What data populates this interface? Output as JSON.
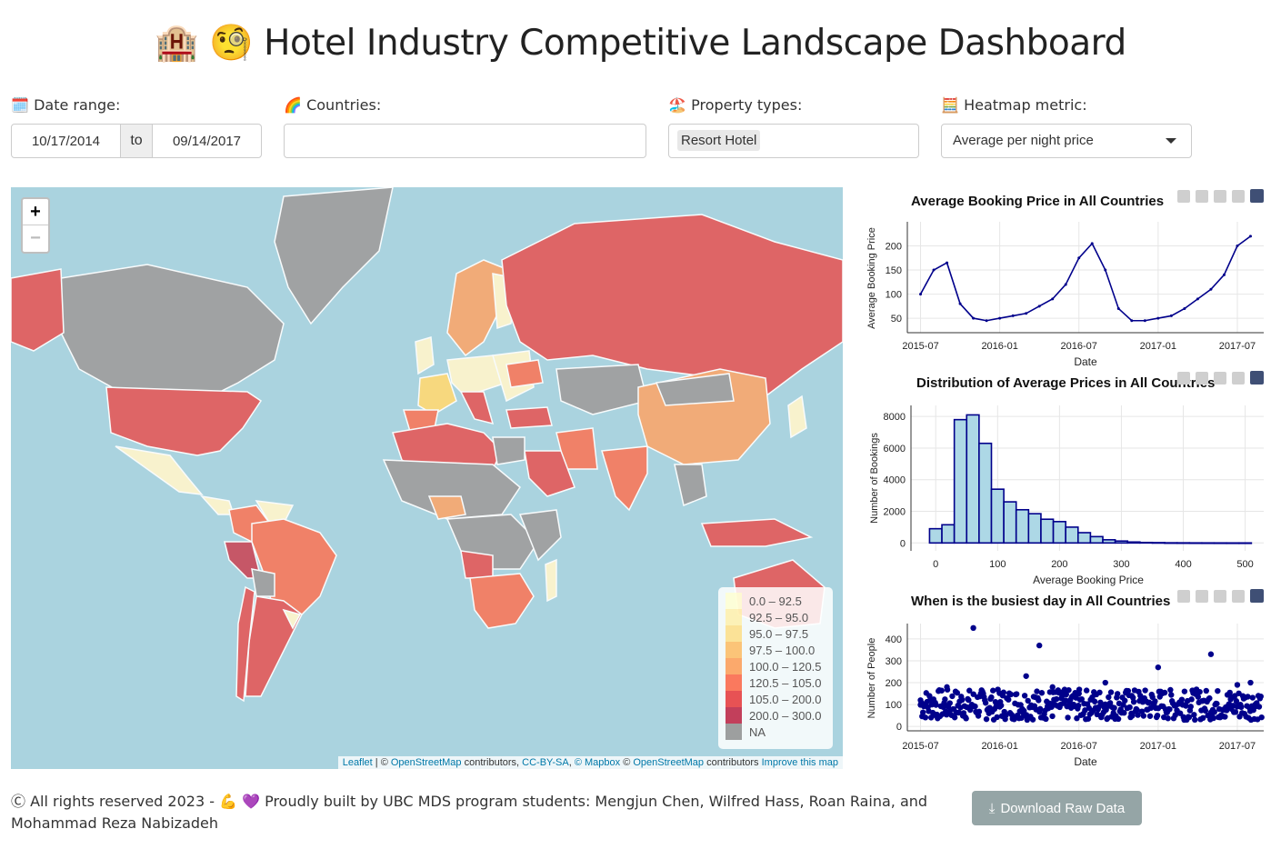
{
  "header": {
    "title": "🏨 🧐 Hotel Industry Competitive Landscape Dashboard"
  },
  "controls": {
    "date_range": {
      "emoji": "🗓️",
      "label": "Date range:",
      "start": "10/17/2014",
      "sep": "to",
      "end": "09/14/2017"
    },
    "countries": {
      "emoji": "🌈",
      "label": "Countries:",
      "value": ""
    },
    "property_types": {
      "emoji": "🏖️",
      "label": "Property types:",
      "selected": "Resort Hotel"
    },
    "heatmap_metric": {
      "emoji": "🧮",
      "label": "Heatmap metric:",
      "selected": "Average per night price"
    }
  },
  "map": {
    "zoom_in": "+",
    "zoom_out": "−",
    "legend": [
      {
        "label": "0.0 – 92.5",
        "color": "#ffffcc"
      },
      {
        "label": "92.5 – 95.0",
        "color": "#ffeda0"
      },
      {
        "label": "95.0 – 97.5",
        "color": "#fed976"
      },
      {
        "label": "97.5 – 100.0",
        "color": "#feb24c"
      },
      {
        "label": "100.0 – 120.5",
        "color": "#fd8d3c"
      },
      {
        "label": "120.5 – 105.0",
        "color": "#fc4e2a"
      },
      {
        "label": "105.0 – 200.0",
        "color": "#e31a1c"
      },
      {
        "label": "200.0 – 300.0",
        "color": "#b10026"
      },
      {
        "label": "NA",
        "color": "#808080"
      }
    ],
    "attribution": {
      "leaflet": "Leaflet",
      "sep1": " | © ",
      "osm": "OpenStreetMap",
      "contributors": " contributors, ",
      "ccbysa": "CC-BY-SA",
      "comma": ", ",
      "mapbox": "© Mapbox",
      "copy": " © ",
      "osm2": "OpenStreetMap",
      "contributors2": " contributors ",
      "improve": "Improve this map"
    }
  },
  "plots": {
    "line": {
      "title": "Average Booking Price in All Countries"
    },
    "hist": {
      "title": "Distribution of Average Prices in All Countries"
    },
    "scatter": {
      "title": "When is the busiest day in All Countries"
    }
  },
  "chart_data": [
    {
      "type": "line",
      "title": "Average Booking Price in All Countries",
      "xlabel": "Date",
      "ylabel": "Average Booking Price",
      "x_ticks": [
        "2015-07",
        "2016-01",
        "2016-07",
        "2017-01",
        "2017-07"
      ],
      "y_ticks": [
        50,
        100,
        150,
        200
      ],
      "ylim": [
        20,
        250
      ],
      "grid": true,
      "x": [
        "2015-07",
        "2015-08",
        "2015-09",
        "2015-10",
        "2015-11",
        "2015-12",
        "2016-01",
        "2016-02",
        "2016-03",
        "2016-04",
        "2016-05",
        "2016-06",
        "2016-07",
        "2016-08",
        "2016-09",
        "2016-10",
        "2016-11",
        "2016-12",
        "2017-01",
        "2017-02",
        "2017-03",
        "2017-04",
        "2017-05",
        "2017-06",
        "2017-07",
        "2017-08"
      ],
      "values": [
        100,
        150,
        165,
        80,
        50,
        45,
        50,
        55,
        60,
        75,
        90,
        120,
        175,
        205,
        150,
        70,
        45,
        45,
        50,
        55,
        70,
        90,
        110,
        140,
        200,
        220
      ]
    },
    {
      "type": "bar",
      "title": "Distribution of Average Prices in All Countries",
      "xlabel": "Average Booking Price",
      "ylabel": "Number of Bookings",
      "x_ticks": [
        0,
        100,
        200,
        300,
        400,
        500
      ],
      "y_ticks": [
        0,
        2000,
        4000,
        6000,
        8000
      ],
      "ylim": [
        -500,
        8700
      ],
      "bin_width": 20,
      "bin_starts": [
        -10,
        10,
        30,
        50,
        70,
        90,
        110,
        130,
        150,
        170,
        190,
        210,
        230,
        250,
        270,
        290,
        310,
        330,
        350,
        370,
        390,
        410,
        430,
        450,
        470,
        490
      ],
      "values": [
        900,
        1150,
        7800,
        8100,
        6300,
        3400,
        2600,
        2100,
        1850,
        1500,
        1350,
        1000,
        650,
        400,
        200,
        120,
        60,
        30,
        20,
        10,
        8,
        5,
        4,
        3,
        2,
        2
      ]
    },
    {
      "type": "scatter",
      "title": "When is the busiest day in All Countries",
      "xlabel": "Date",
      "ylabel": "Number of People",
      "x_ticks": [
        "2015-07",
        "2016-01",
        "2016-07",
        "2017-01",
        "2017-07"
      ],
      "y_ticks": [
        0,
        100,
        200,
        300,
        400
      ],
      "ylim": [
        -20,
        470
      ],
      "note": "daily counts, mostly 20–200 with peaks near 450 (2015-11), 370 (2016-04), 330 (2017-05)",
      "x": [
        "2015-07",
        "2015-09",
        "2015-11",
        "2016-01",
        "2016-03",
        "2016-04",
        "2016-05",
        "2016-07",
        "2016-09",
        "2016-11",
        "2017-01",
        "2017-03",
        "2017-05",
        "2017-07",
        "2017-08"
      ],
      "values": [
        120,
        180,
        450,
        90,
        230,
        370,
        180,
        150,
        200,
        140,
        270,
        160,
        330,
        190,
        200
      ]
    }
  ],
  "footer": {
    "text": "Ⓒ All rights reserved 2023 - 💪 💜 Proudly built by UBC MDS program students: Mengjun Chen, Wilfred Hass, Roan Raina, and Mohammad Reza Nabizadeh",
    "download_label": "Download Raw Data"
  },
  "colors": {
    "line": "#00008b",
    "hist_fill": "#add8e6",
    "hist_stroke": "#00008b",
    "na": "#a09e9e",
    "water": "#aad3df",
    "button": "#95a5a6"
  }
}
